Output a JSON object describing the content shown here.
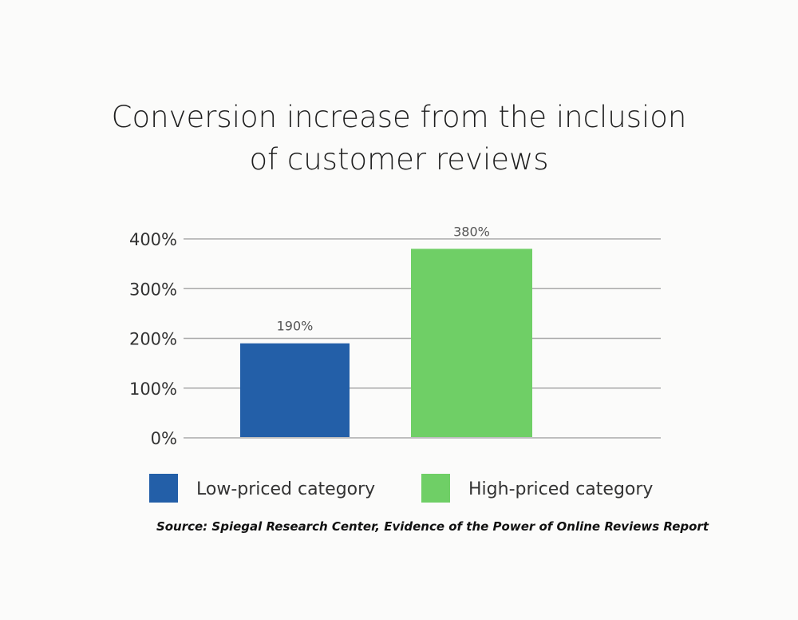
{
  "chart_data": {
    "type": "bar",
    "title_lines": [
      "Conversion increase from the inclusion",
      "of customer reviews"
    ],
    "categories": [
      "Low-priced category",
      "High-priced category"
    ],
    "values": [
      190,
      380
    ],
    "value_labels": [
      "190%",
      "380%"
    ],
    "colors": [
      "#235fa8",
      "#6fcf66"
    ],
    "ylim": [
      0,
      400
    ],
    "yticks": [
      0,
      100,
      200,
      300,
      400
    ],
    "ytick_labels": [
      "0%",
      "100%",
      "200%",
      "300%",
      "400%"
    ],
    "xlabel": "",
    "ylabel": "",
    "grid": true,
    "legend": [
      "Low-priced category",
      "High-priced category"
    ],
    "legend_position": "bottom"
  },
  "source": "Source: Spiegal Research Center, Evidence of the Power of Online Reviews Report"
}
